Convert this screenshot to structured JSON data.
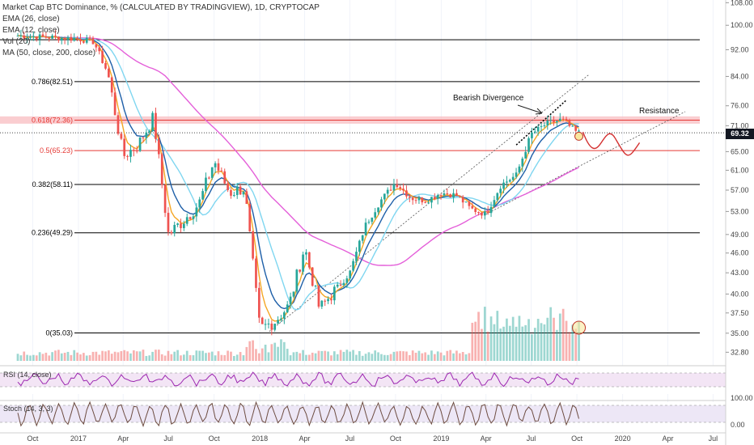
{
  "header": {
    "title": "Market Cap BTC Dominance, % (CALCULATED BY TRADINGVIEW), 1D, CRYPTOCAP",
    "indicators": [
      "EMA (26, close)",
      "EMA (12, close)",
      "Vol (20)",
      "MA (50, close, 200, close)"
    ]
  },
  "price_badge": "69.32",
  "annotations": {
    "divergence": "Bearish Divergence",
    "resistance": "Resistance"
  },
  "sub_panels": {
    "rsi_label": "RSI (14, close)",
    "stoch_label": "Stoch (14, 3, 3)",
    "osc_ticks": [
      "100.00",
      "0.00"
    ]
  },
  "colors": {
    "candle_up": "#26a69a",
    "candle_down": "#ef5350",
    "ema26": "#1e5fa8",
    "ema12": "#f5a623",
    "ma50": "#7fd6f0",
    "ma200": "#e45fd9",
    "fib_line": "#000000",
    "fib_key": "#e53935",
    "rsi": "#9c27b0",
    "stoch": "#6d4c41"
  },
  "chart_data": {
    "type": "line",
    "y_scale": "log",
    "ylim": [
      31.5,
      109
    ],
    "y_ticks": [
      108.0,
      100.0,
      92.0,
      84.0,
      76.0,
      71.0,
      65.0,
      61.0,
      57.0,
      53.0,
      49.0,
      46.0,
      43.0,
      40.0,
      37.5,
      35.0,
      32.8
    ],
    "y_tick_labels": [
      "108.00",
      "100.00",
      "92.00",
      "84.00",
      "76.00",
      "71.00",
      "65.00",
      "61.00",
      "57.00",
      "53.00",
      "49.00",
      "46.00",
      "43.00",
      "40.00",
      "37.50",
      "35.00",
      "32.80"
    ],
    "x_ticks": [
      "Oct",
      "2017",
      "Apr",
      "Jul",
      "Oct",
      "2018",
      "Apr",
      "Jul",
      "Oct",
      "2019",
      "Apr",
      "Jul",
      "Oct",
      "2020",
      "Apr",
      "Jul"
    ],
    "fib_levels": [
      {
        "label": "0.786(82.51)",
        "value": 82.51,
        "key": false
      },
      {
        "label": "0.618(72.36)",
        "value": 72.36,
        "key": true
      },
      {
        "label": "0.5(65.23)",
        "value": 65.23,
        "key": true
      },
      {
        "label": "0.382(58.11)",
        "value": 58.11,
        "key": false
      },
      {
        "label": "0.236(49.29)",
        "value": 49.29,
        "key": false
      },
      {
        "label": "0(35.03)",
        "value": 35.03,
        "key": false
      }
    ],
    "top_level": 95.2,
    "last_price": 69.32,
    "series": [
      {
        "name": "Market Cap BTC Dominance",
        "x": [
          "2016-09",
          "2016-11",
          "2017-01",
          "2017-02",
          "2017-03",
          "2017-04",
          "2017-05",
          "2017-06",
          "2017-07",
          "2017-08",
          "2017-09",
          "2017-10",
          "2017-11",
          "2017-12",
          "2018-01",
          "2018-02",
          "2018-03",
          "2018-04",
          "2018-05",
          "2018-06",
          "2018-07",
          "2018-08",
          "2018-09",
          "2018-10",
          "2018-11",
          "2018-12",
          "2019-01",
          "2019-02",
          "2019-03",
          "2019-04",
          "2019-05",
          "2019-06",
          "2019-07",
          "2019-08",
          "2019-09",
          "2019-10"
        ],
        "values": [
          96.5,
          96.0,
          95.5,
          94.5,
          85.0,
          64.0,
          66.5,
          73.0,
          49.0,
          51.5,
          54.5,
          63.0,
          56.5,
          57.5,
          35.5,
          36.5,
          38.5,
          47.0,
          38.0,
          40.5,
          43.0,
          50.5,
          55.0,
          58.5,
          55.5,
          55.0,
          56.5,
          56.0,
          53.5,
          52.5,
          58.0,
          60.0,
          69.0,
          71.5,
          72.5,
          69.32
        ]
      }
    ]
  }
}
